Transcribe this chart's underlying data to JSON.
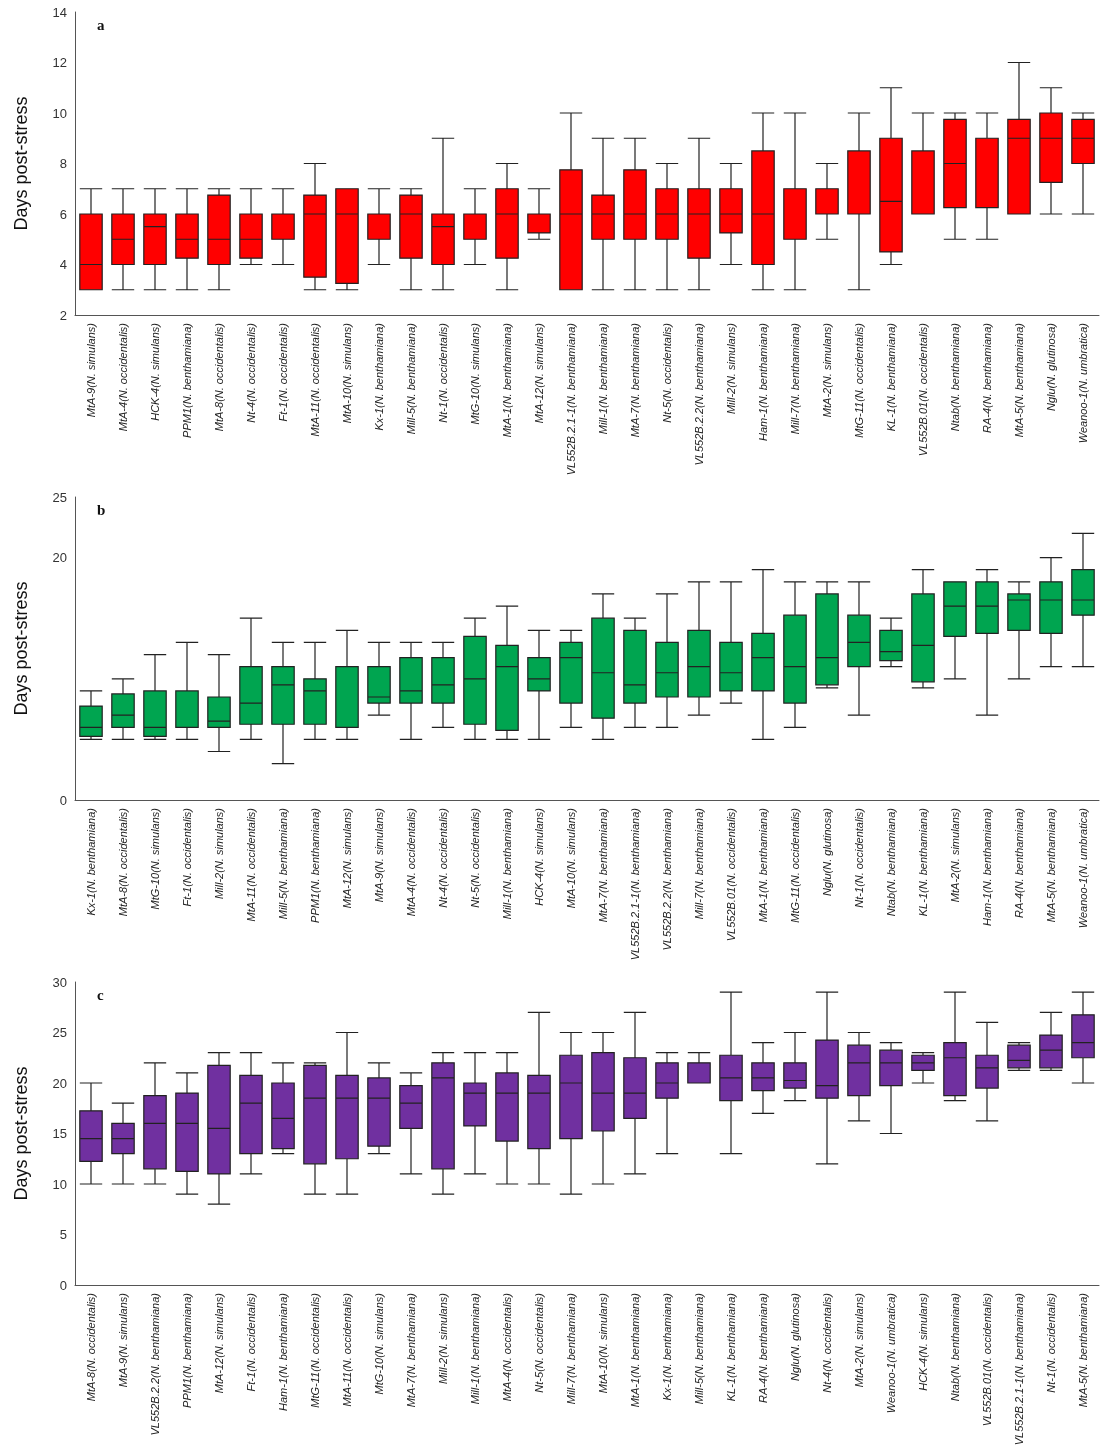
{
  "chart_data": [
    {
      "type": "box",
      "title": "a",
      "ylabel": "Days post-stress",
      "ylim": [
        2,
        14
      ],
      "yticks": [
        2,
        4,
        6,
        8,
        10,
        12,
        14
      ],
      "grid": false,
      "categories": [
        "MtA-9(N. simulans)",
        "MtA-4(N. occidentalis)",
        "HCK-4(N. simulans)",
        "PPM1(N. benthamiana)",
        "MtA-8(N. occidentalis)",
        "Nt-4(N. occidentalis)",
        "Ft-1(N. occidentalis)",
        "MtA-11(N. occidentalis)",
        "MtA-10(N. simulans)",
        "Kx-1(N. benthamiana)",
        "Mill-5(N. benthamiana)",
        "Nt-1(N. occidentalis)",
        "MtG-10(N. simulans)",
        "MtA-1(N. benthamiana)",
        "MtA-12(N. simulans)",
        "VL552B.2.1-1(N. benthamiana)",
        "Mill-1(N. benthamiana)",
        "MtA-7(N. benthamiana)",
        "Nt-5(N. occidentalis)",
        "VL552B.2.2(N. benthamiana)",
        "Mill-2(N. simulans)",
        "Ham-1(N. benthamiana)",
        "Mill-7(N. benthamiana)",
        "MtA-2(N. simulans)",
        "MtG-11(N. occidentalis)",
        "KL-1(N. benthamiana)",
        "VL552B.01(N. occidentalis)",
        "Ntab(N. benthamiana)",
        "RA-4(N. benthamiana)",
        "MtA-5(N. benthamiana)",
        "Nglu(N. glutinosa)",
        "Weanoo-1(N. umbratica)"
      ],
      "series": [
        {
          "color": "#ff0000",
          "boxes": [
            {
              "low": 3,
              "q1": 3,
              "median": 4,
              "q3": 6,
              "high": 7
            },
            {
              "low": 3,
              "q1": 4,
              "median": 5,
              "q3": 6,
              "high": 7
            },
            {
              "low": 3,
              "q1": 4,
              "median": 5.5,
              "q3": 6,
              "high": 7
            },
            {
              "low": 3,
              "q1": 4.25,
              "median": 5,
              "q3": 6,
              "high": 7
            },
            {
              "low": 3,
              "q1": 4,
              "median": 5,
              "q3": 6.75,
              "high": 7
            },
            {
              "low": 4,
              "q1": 4.25,
              "median": 5,
              "q3": 6,
              "high": 7
            },
            {
              "low": 4,
              "q1": 5,
              "median": 6,
              "q3": 6,
              "high": 7
            },
            {
              "low": 3,
              "q1": 3.5,
              "median": 6,
              "q3": 6.75,
              "high": 8
            },
            {
              "low": 3,
              "q1": 3.25,
              "median": 6,
              "q3": 7,
              "high": 7
            },
            {
              "low": 4,
              "q1": 5,
              "median": 6,
              "q3": 6,
              "high": 7
            },
            {
              "low": 3,
              "q1": 4.25,
              "median": 6,
              "q3": 6.75,
              "high": 7
            },
            {
              "low": 3,
              "q1": 4,
              "median": 5.5,
              "q3": 6,
              "high": 9
            },
            {
              "low": 4,
              "q1": 5,
              "median": 6,
              "q3": 6,
              "high": 7
            },
            {
              "low": 3,
              "q1": 4.25,
              "median": 6,
              "q3": 7,
              "high": 8
            },
            {
              "low": 5,
              "q1": 5.25,
              "median": 6,
              "q3": 6,
              "high": 7
            },
            {
              "low": 3,
              "q1": 3,
              "median": 6,
              "q3": 7.75,
              "high": 10
            },
            {
              "low": 3,
              "q1": 5,
              "median": 6,
              "q3": 6.75,
              "high": 9
            },
            {
              "low": 3,
              "q1": 5,
              "median": 6,
              "q3": 7.75,
              "high": 9
            },
            {
              "low": 3,
              "q1": 5,
              "median": 6,
              "q3": 7,
              "high": 8
            },
            {
              "low": 3,
              "q1": 4.25,
              "median": 6,
              "q3": 7,
              "high": 9
            },
            {
              "low": 4,
              "q1": 5.25,
              "median": 6,
              "q3": 7,
              "high": 8
            },
            {
              "low": 3,
              "q1": 4,
              "median": 6,
              "q3": 8.5,
              "high": 10
            },
            {
              "low": 3,
              "q1": 5,
              "median": 7,
              "q3": 7,
              "high": 10
            },
            {
              "low": 5,
              "q1": 6,
              "median": 6,
              "q3": 7,
              "high": 8
            },
            {
              "low": 3,
              "q1": 6,
              "median": 6,
              "q3": 8.5,
              "high": 10
            },
            {
              "low": 4,
              "q1": 4.5,
              "median": 6.5,
              "q3": 9,
              "high": 11
            },
            {
              "low": 6,
              "q1": 6,
              "median": 6,
              "q3": 8.5,
              "high": 10
            },
            {
              "low": 5,
              "q1": 6.25,
              "median": 8,
              "q3": 9.75,
              "high": 10
            },
            {
              "low": 5,
              "q1": 6.25,
              "median": 9,
              "q3": 9,
              "high": 10
            },
            {
              "low": 6,
              "q1": 6,
              "median": 9,
              "q3": 9.75,
              "high": 12
            },
            {
              "low": 6,
              "q1": 7.25,
              "median": 9,
              "q3": 10,
              "high": 11
            },
            {
              "low": 6,
              "q1": 8,
              "median": 9,
              "q3": 9.75,
              "high": 10
            }
          ]
        }
      ]
    },
    {
      "type": "box",
      "title": "b",
      "ylabel": "Days post-stress",
      "ylim": [
        0,
        25
      ],
      "yticks": [
        0,
        20,
        25
      ],
      "grid": false,
      "categories": [
        "Kx-1(N. benthamiana)",
        "MtA-8(N. occidentalis)",
        "MtG-10(N. simulans)",
        "Ft-1(N. occidentalis)",
        "Mill-2(N. simulans)",
        "MtA-11(N. occidentalis)",
        "Mill-5(N. benthamiana)",
        "PPM1(N. benthamiana)",
        "MtA-12(N. simulans)",
        "MtA-9(N. simulans)",
        "MtA-4(N. occidentalis)",
        "Nt-4(N. occidentalis)",
        "Nt-5(N. occidentalis)",
        "Mill-1(N. benthamiana)",
        "HCK-4(N. simulans)",
        "MtA-10(N. simulans)",
        "MtA-7(N. benthamiana)",
        "VL552B.2.1-1(N. benthamiana)",
        "VL552B.2.2(N. benthamiana)",
        "Mill-7(N. benthamiana)",
        "VL552B.01(N. occidentalis)",
        "MtA-1(N. benthamiana)",
        "MtG-11(N. occidentalis)",
        "Nglu(N. glutinosa)",
        "Nt-1(N. occidentalis)",
        "Ntab(N. benthamiana)",
        "KL-1(N. benthamiana)",
        "MtA-2(N. simulans)",
        "Ham-1(N. benthamiana)",
        "RA-4(N. benthamiana)",
        "MtA-5(N. benthamiana)",
        "Weanoo-1(N. umbratica)"
      ],
      "series": [
        {
          "color": "#00a550",
          "boxes": [
            {
              "low": 5,
              "q1": 5.25,
              "median": 6,
              "q3": 7.75,
              "high": 9
            },
            {
              "low": 5,
              "q1": 6,
              "median": 7,
              "q3": 8.75,
              "high": 10
            },
            {
              "low": 5,
              "q1": 5.25,
              "median": 6,
              "q3": 9,
              "high": 12
            },
            {
              "low": 5,
              "q1": 6,
              "median": 6,
              "q3": 9,
              "high": 13
            },
            {
              "low": 4,
              "q1": 6,
              "median": 6.5,
              "q3": 8.5,
              "high": 12
            },
            {
              "low": 5,
              "q1": 6.25,
              "median": 8,
              "q3": 11,
              "high": 15
            },
            {
              "low": 3,
              "q1": 6.25,
              "median": 9.5,
              "q3": 11,
              "high": 13
            },
            {
              "low": 5,
              "q1": 6.25,
              "median": 9,
              "q3": 10,
              "high": 13
            },
            {
              "low": 5,
              "q1": 6,
              "median": 11,
              "q3": 11,
              "high": 14
            },
            {
              "low": 7,
              "q1": 8,
              "median": 8.5,
              "q3": 11,
              "high": 13
            },
            {
              "low": 5,
              "q1": 8,
              "median": 9,
              "q3": 11.75,
              "high": 13
            },
            {
              "low": 6,
              "q1": 8,
              "median": 9.5,
              "q3": 11.75,
              "high": 13
            },
            {
              "low": 5,
              "q1": 6.25,
              "median": 10,
              "q3": 13.5,
              "high": 15
            },
            {
              "low": 5,
              "q1": 5.75,
              "median": 11,
              "q3": 12.75,
              "high": 16
            },
            {
              "low": 5,
              "q1": 9,
              "median": 10,
              "q3": 11.75,
              "high": 14
            },
            {
              "low": 6,
              "q1": 8,
              "median": 11.75,
              "q3": 13,
              "high": 14
            },
            {
              "low": 5,
              "q1": 6.75,
              "median": 10.5,
              "q3": 15,
              "high": 17
            },
            {
              "low": 6,
              "q1": 8,
              "median": 9.5,
              "q3": 14,
              "high": 15
            },
            {
              "low": 6,
              "q1": 8.5,
              "median": 10.5,
              "q3": 13,
              "high": 17
            },
            {
              "low": 7,
              "q1": 8.5,
              "median": 11,
              "q3": 14,
              "high": 18
            },
            {
              "low": 8,
              "q1": 9,
              "median": 10.5,
              "q3": 13,
              "high": 18
            },
            {
              "low": 5,
              "q1": 9,
              "median": 11.75,
              "q3": 13.75,
              "high": 19
            },
            {
              "low": 6,
              "q1": 8,
              "median": 11,
              "q3": 15.25,
              "high": 18
            },
            {
              "low": 9.25,
              "q1": 9.5,
              "median": 11.75,
              "q3": 17,
              "high": 18
            },
            {
              "low": 7,
              "q1": 11,
              "median": 13,
              "q3": 15.25,
              "high": 18
            },
            {
              "low": 11,
              "q1": 11.5,
              "median": 12.25,
              "q3": 14,
              "high": 15
            },
            {
              "low": 9.25,
              "q1": 9.75,
              "median": 12.75,
              "q3": 17,
              "high": 19
            },
            {
              "low": 10,
              "q1": 13.5,
              "median": 16,
              "q3": 18,
              "high": 18
            },
            {
              "low": 7,
              "q1": 13.75,
              "median": 16,
              "q3": 18,
              "high": 19
            },
            {
              "low": 10,
              "q1": 14,
              "median": 16.5,
              "q3": 17,
              "high": 18
            },
            {
              "low": 11,
              "q1": 13.75,
              "median": 16.5,
              "q3": 18,
              "high": 20
            },
            {
              "low": 11,
              "q1": 15.25,
              "median": 16.5,
              "q3": 19,
              "high": 22
            }
          ]
        }
      ]
    },
    {
      "type": "box",
      "title": "c",
      "ylabel": "Days post-stress",
      "ylim": [
        0,
        30
      ],
      "yticks": [
        0,
        5,
        10,
        15,
        20,
        25,
        30
      ],
      "grid": false,
      "categories": [
        "MtA-8(N. occidentalis)",
        "MtA-9(N. simulans)",
        "VL552B.2.2(N. benthamiana)",
        "PPM1(N. benthamiana)",
        "MtA-12(N. simulans)",
        "Ft-1(N. occidentalis)",
        "Ham-1(N. benthamiana)",
        "MtG-11(N. occidentalis)",
        "MtA-11(N. occidentalis)",
        "MtG-10(N. simulans)",
        "MtA-7(N. benthamiana)",
        "Mill-2(N. simulans)",
        "Mill-1(N. benthamiana)",
        "MtA-4(N. occidentalis)",
        "Nt-5(N. occidentalis)",
        "Mill-7(N. benthamiana)",
        "MtA-10(N. simulans)",
        "MtA-1(N. benthamiana)",
        "Kx-1(N. benthamiana)",
        "Mill-5(N. benthamiana)",
        "KL-1(N. benthamiana)",
        "RA-4(N. benthamiana)",
        "Nglu(N. glutinosa)",
        "Nt-4(N. occidentalis)",
        "MtA-2(N. simulans)",
        "Weanoo-1(N. umbratica)",
        "HCK-4(N. simulans)",
        "Ntab(N. benthamiana)",
        "VL552B.01(N. occidentalis)",
        "VL552B.2.1-1(N. benthamiana)",
        "Nt-1(N. occidentalis)",
        "MtA-5(N. benthamiana)"
      ],
      "series": [
        {
          "color": "#7030a0",
          "boxes": [
            {
              "low": 10,
              "q1": 12.25,
              "median": 14.5,
              "q3": 17.25,
              "high": 20
            },
            {
              "low": 10,
              "q1": 13,
              "median": 14.5,
              "q3": 16,
              "high": 18
            },
            {
              "low": 10,
              "q1": 11.5,
              "median": 16,
              "q3": 18.75,
              "high": 22
            },
            {
              "low": 9,
              "q1": 11.25,
              "median": 16,
              "q3": 19,
              "high": 21
            },
            {
              "low": 8,
              "q1": 11,
              "median": 15.5,
              "q3": 21.75,
              "high": 23
            },
            {
              "low": 11,
              "q1": 13,
              "median": 18,
              "q3": 20.75,
              "high": 23
            },
            {
              "low": 13,
              "q1": 13.5,
              "median": 16.5,
              "q3": 20,
              "high": 22
            },
            {
              "low": 9,
              "q1": 12,
              "median": 18.5,
              "q3": 21.75,
              "high": 22
            },
            {
              "low": 9,
              "q1": 12.5,
              "median": 18.5,
              "q3": 20.75,
              "high": 25
            },
            {
              "low": 13,
              "q1": 13.75,
              "median": 18.5,
              "q3": 20.5,
              "high": 22
            },
            {
              "low": 11,
              "q1": 15.5,
              "median": 18,
              "q3": 19.75,
              "high": 21
            },
            {
              "low": 9,
              "q1": 11.5,
              "median": 20.5,
              "q3": 22,
              "high": 23
            },
            {
              "low": 11,
              "q1": 15.75,
              "median": 19,
              "q3": 20,
              "high": 23
            },
            {
              "low": 10,
              "q1": 14.25,
              "median": 19,
              "q3": 21,
              "high": 23
            },
            {
              "low": 10,
              "q1": 13.5,
              "median": 19,
              "q3": 20.75,
              "high": 27
            },
            {
              "low": 9,
              "q1": 14.5,
              "median": 20,
              "q3": 22.75,
              "high": 25
            },
            {
              "low": 10,
              "q1": 15.25,
              "median": 19,
              "q3": 23,
              "high": 25
            },
            {
              "low": 11,
              "q1": 16.5,
              "median": 19,
              "q3": 22.5,
              "high": 27
            },
            {
              "low": 13,
              "q1": 18.5,
              "median": 20,
              "q3": 22,
              "high": 23
            },
            {
              "low": 20,
              "q1": 20,
              "median": 20,
              "q3": 22,
              "high": 23
            },
            {
              "low": 13,
              "q1": 18.25,
              "median": 20.5,
              "q3": 22.75,
              "high": 29
            },
            {
              "low": 17,
              "q1": 19.25,
              "median": 20.5,
              "q3": 22,
              "high": 24
            },
            {
              "low": 18.25,
              "q1": 19.5,
              "median": 20.25,
              "q3": 22,
              "high": 25
            },
            {
              "low": 12,
              "q1": 18.5,
              "median": 19.75,
              "q3": 24.25,
              "high": 29
            },
            {
              "low": 16.25,
              "q1": 18.75,
              "median": 22,
              "q3": 23.75,
              "high": 25
            },
            {
              "low": 15,
              "q1": 19.75,
              "median": 22,
              "q3": 23.25,
              "high": 24
            },
            {
              "low": 20,
              "q1": 21.25,
              "median": 22,
              "q3": 22.75,
              "high": 23
            },
            {
              "low": 18.25,
              "q1": 18.75,
              "median": 22.5,
              "q3": 24,
              "high": 29
            },
            {
              "low": 16.25,
              "q1": 19.5,
              "median": 21.5,
              "q3": 22.75,
              "high": 26
            },
            {
              "low": 21.25,
              "q1": 21.5,
              "median": 22.25,
              "q3": 23.75,
              "high": 24
            },
            {
              "low": 21.25,
              "q1": 21.5,
              "median": 23.25,
              "q3": 24.75,
              "high": 27
            },
            {
              "low": 20,
              "q1": 22.5,
              "median": 24,
              "q3": 26.75,
              "high": 29
            }
          ]
        }
      ]
    }
  ]
}
